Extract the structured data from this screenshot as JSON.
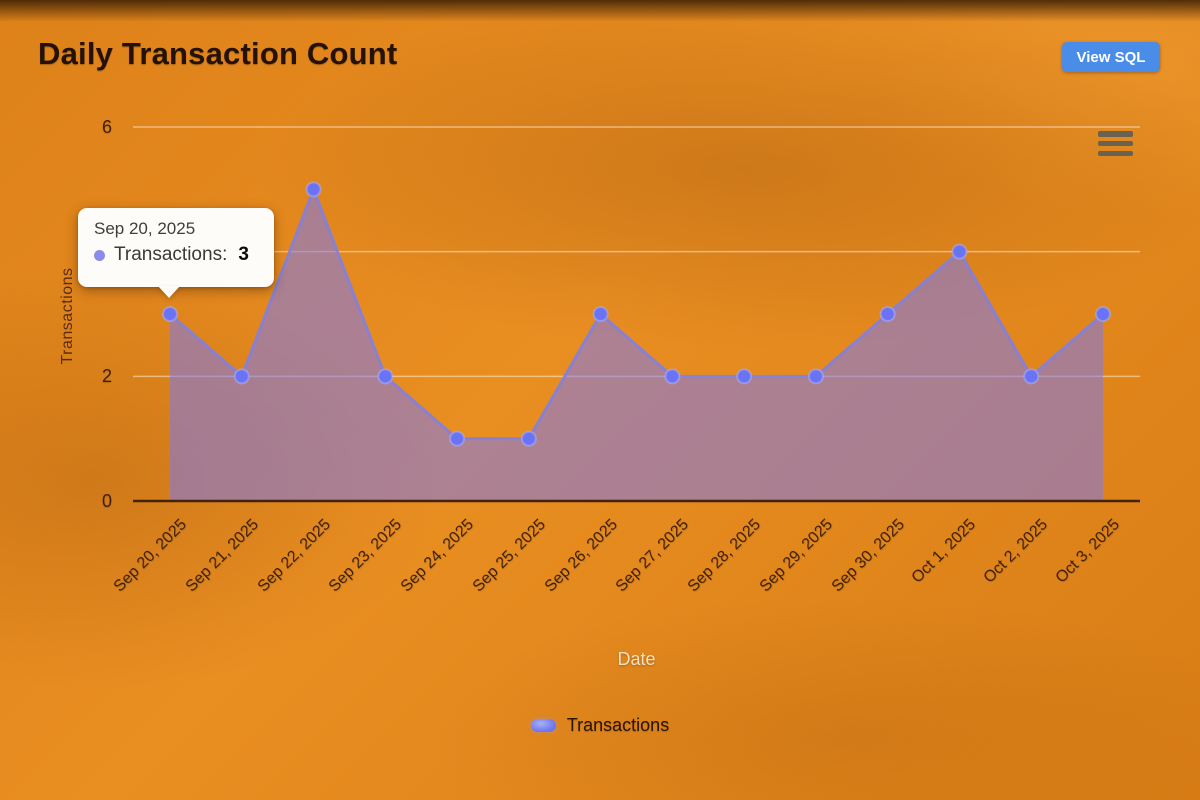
{
  "header": {
    "title": "Daily Transaction Count",
    "view_sql_button": "View SQL"
  },
  "chart_data": {
    "type": "area",
    "title": "Daily Transaction Count",
    "xlabel": "Date",
    "ylabel": "Transactions",
    "x": [
      "Sep 20, 2025",
      "Sep 21, 2025",
      "Sep 22, 2025",
      "Sep 23, 2025",
      "Sep 24, 2025",
      "Sep 25, 2025",
      "Sep 26, 2025",
      "Sep 27, 2025",
      "Sep 28, 2025",
      "Sep 29, 2025",
      "Sep 30, 2025",
      "Oct 1, 2025",
      "Oct 2, 2025",
      "Oct 3, 2025"
    ],
    "series": [
      {
        "name": "Transactions",
        "values": [
          3,
          2,
          5,
          2,
          1,
          1,
          3,
          2,
          2,
          2,
          3,
          4,
          2,
          3
        ]
      }
    ],
    "ylim": [
      0,
      6
    ],
    "yticks": [
      0,
      2,
      4,
      6
    ],
    "grid": true,
    "legend": [
      "Transactions"
    ],
    "legend_position": "bottom",
    "colors": {
      "line": "#8280e0",
      "marker": "#6b73f5",
      "fill": "rgba(124,121,240,0.55)",
      "gridline": "rgba(255,244,224,0.5)",
      "axis_line": "#44220a"
    }
  },
  "tooltip": {
    "date": "Sep 20, 2025",
    "series_label": "Transactions:",
    "value": "3",
    "bullet_color": "#8a8cec"
  },
  "icons": {
    "menu": "hamburger-menu-icon"
  },
  "colors": {
    "background": "#e0851c",
    "button": "#4a8de8",
    "title_text": "#241107"
  }
}
